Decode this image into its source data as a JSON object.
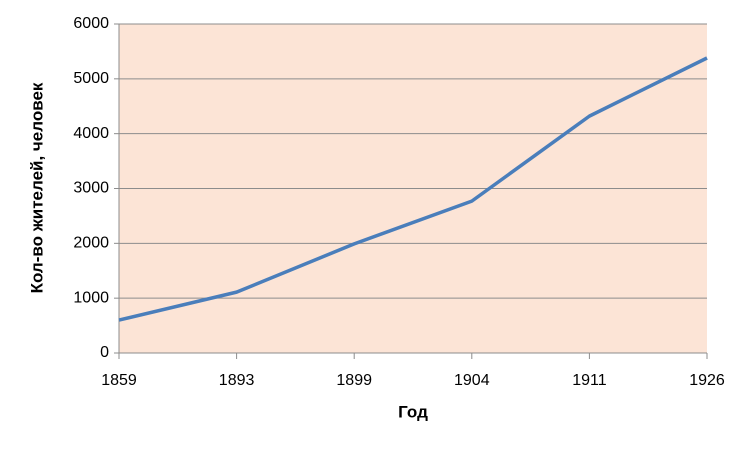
{
  "chart_data": {
    "type": "line",
    "x_label": "Год",
    "y_label": "Кол-во жителей, человек",
    "categories": [
      "1859",
      "1893",
      "1899",
      "1904",
      "1911",
      "1926"
    ],
    "series": [
      {
        "name": "Кол-во жителей",
        "color": "#4a7ebb",
        "values": [
          600,
          1110,
          1990,
          2770,
          4320,
          5380
        ]
      }
    ],
    "ylim": [
      0,
      6000
    ],
    "yticks": [
      0,
      1000,
      2000,
      3000,
      4000,
      5000,
      6000
    ],
    "grid": true,
    "plot_background": "#fce4d6"
  }
}
